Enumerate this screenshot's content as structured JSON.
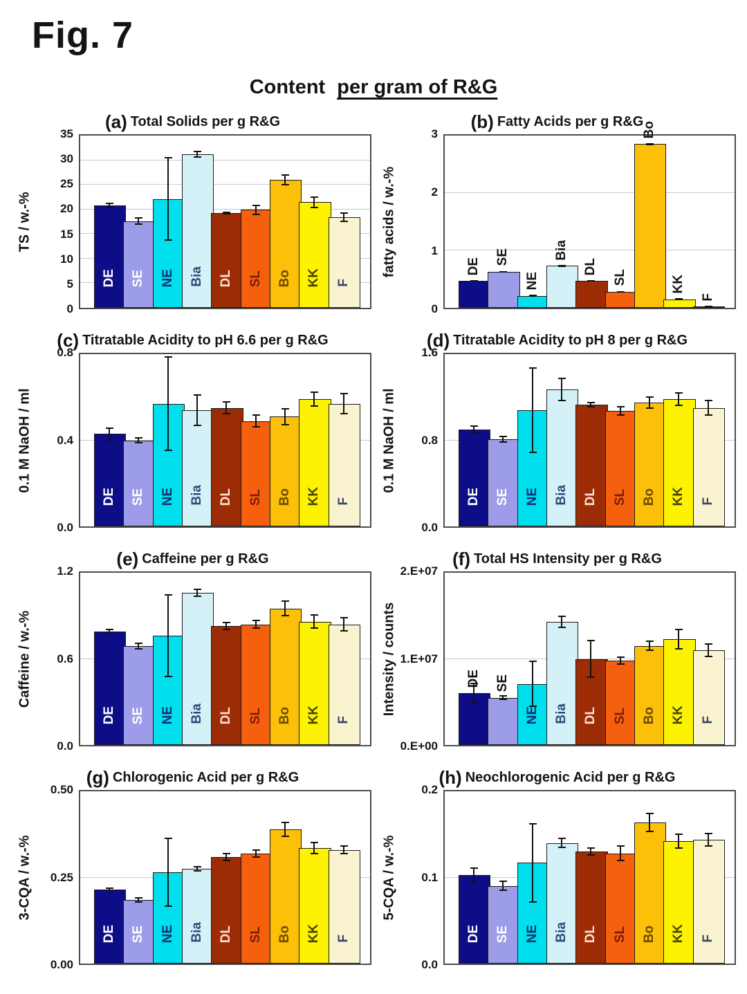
{
  "figure_label": "Fig. 7",
  "main_title": {
    "prefix": "Content",
    "underlined": "per gram of R&G"
  },
  "categories": [
    "DE",
    "SE",
    "NE",
    "Bia",
    "DL",
    "SL",
    "Bo",
    "KK",
    "F"
  ],
  "bar_colors": {
    "DE": "#0d0d87",
    "SE": "#9c9ce8",
    "NE": "#00dfee",
    "Bia": "#d4f1f8",
    "DL": "#9b2c06",
    "SL": "#f4600e",
    "Bo": "#fcc008",
    "KK": "#fdf202",
    "F": "#f9f3d0"
  },
  "bar_label_colors": {
    "DE": "#ffffff",
    "SE": "#ffffff",
    "NE": "#0e3070",
    "Bia": "#2a4c79",
    "DL": "#ffe0d2",
    "SL": "#801a00",
    "Bo": "#6b4a00",
    "KK": "#454500",
    "F": "#3a4568"
  },
  "outside_label_color": "#141414",
  "chart_data": [
    {
      "type": "bar",
      "panel": "(a)",
      "title": "Total Solids per g R&G",
      "ylabel": "TS / w.-%",
      "ylim": [
        0,
        35
      ],
      "tick_values": [
        0,
        5,
        10,
        15,
        20,
        25,
        30,
        35
      ],
      "tick_labels": [
        "0",
        "5",
        "10",
        "15",
        "20",
        "25",
        "30",
        "35"
      ],
      "categories": [
        "DE",
        "SE",
        "NE",
        "Bia",
        "DL",
        "SL",
        "Bo",
        "KK",
        "F"
      ],
      "values": [
        20.8,
        17.6,
        22.1,
        31.2,
        19.3,
        19.9,
        26.0,
        21.5,
        18.4
      ],
      "errors": [
        0.5,
        0.8,
        8.5,
        0.7,
        0.3,
        1.0,
        1.1,
        1.2,
        1.0
      ],
      "labels_outside": []
    },
    {
      "type": "bar",
      "panel": "(b)",
      "title": "Fatty Acids per g R&G",
      "ylabel": "fatty acids / w.-%",
      "ylim": [
        0,
        3
      ],
      "tick_values": [
        0,
        1,
        2,
        3
      ],
      "tick_labels": [
        "0",
        "1",
        "2",
        "3"
      ],
      "categories": [
        "DE",
        "SE",
        "NE",
        "Bia",
        "DL",
        "SL",
        "Bo",
        "KK",
        "F"
      ],
      "values": [
        0.47,
        0.63,
        0.21,
        0.73,
        0.47,
        0.28,
        2.85,
        0.15,
        0.02
      ],
      "errors": [
        0.01,
        0.01,
        0.01,
        0.02,
        0.01,
        0.01,
        0.02,
        0.01,
        0.005
      ],
      "labels_outside": "all"
    },
    {
      "type": "bar",
      "panel": "(c)",
      "title": "Titratable Acidity to pH 6.6 per g R&G",
      "ylabel": "0.1 M NaOH / ml",
      "ylim": [
        0,
        0.8
      ],
      "tick_values": [
        0,
        0.4,
        0.8
      ],
      "tick_labels": [
        "0.0",
        "0.4",
        "0.8"
      ],
      "categories": [
        "DE",
        "SE",
        "NE",
        "Bia",
        "DL",
        "SL",
        "Bo",
        "KK",
        "F"
      ],
      "values": [
        0.43,
        0.4,
        0.57,
        0.54,
        0.55,
        0.49,
        0.51,
        0.59,
        0.57
      ],
      "errors": [
        0.03,
        0.015,
        0.22,
        0.075,
        0.03,
        0.03,
        0.04,
        0.035,
        0.05
      ],
      "labels_outside": []
    },
    {
      "type": "bar",
      "panel": "(d)",
      "title": "Titratable Acidity to pH 8 per g R&G",
      "ylabel": "0.1 M NaOH / ml",
      "ylim": [
        0,
        1.6
      ],
      "tick_values": [
        0,
        0.8,
        1.6
      ],
      "tick_labels": [
        "0.0",
        "0.8",
        "1.6"
      ],
      "categories": [
        "DE",
        "SE",
        "NE",
        "Bia",
        "DL",
        "SL",
        "Bo",
        "KK",
        "F"
      ],
      "values": [
        0.9,
        0.81,
        1.08,
        1.27,
        1.13,
        1.07,
        1.15,
        1.18,
        1.1
      ],
      "errors": [
        0.04,
        0.035,
        0.4,
        0.11,
        0.025,
        0.045,
        0.06,
        0.065,
        0.075
      ],
      "labels_outside": []
    },
    {
      "type": "bar",
      "panel": "(e)",
      "title": "Caffeine per g R&G",
      "ylabel": "Caffeine / w.-%",
      "ylim": [
        0,
        1.2
      ],
      "tick_values": [
        0,
        0.6,
        1.2
      ],
      "tick_labels": [
        "0.0",
        "0.6",
        "1.2"
      ],
      "categories": [
        "DE",
        "SE",
        "NE",
        "Bia",
        "DL",
        "SL",
        "Bo",
        "KK",
        "F"
      ],
      "values": [
        0.79,
        0.69,
        0.76,
        1.06,
        0.83,
        0.84,
        0.95,
        0.86,
        0.84
      ],
      "errors": [
        0.02,
        0.025,
        0.29,
        0.03,
        0.03,
        0.03,
        0.055,
        0.05,
        0.05
      ],
      "labels_outside": []
    },
    {
      "type": "bar",
      "panel": "(f)",
      "title": "Total HS Intensity per g R&G",
      "ylabel": "Intensity / counts",
      "ylim": [
        0,
        20000000
      ],
      "tick_values": [
        0,
        10000000,
        20000000
      ],
      "tick_labels": [
        "0.E+00",
        "1.E+07",
        "2.E+07"
      ],
      "categories": [
        "DE",
        "SE",
        "NE",
        "Bia",
        "DL",
        "SL",
        "Bo",
        "KK",
        "F"
      ],
      "values": [
        6000000,
        5500000,
        7100000,
        14300000,
        10000000,
        9800000,
        11500000,
        12300000,
        11000000
      ],
      "errors": [
        1200000,
        300000,
        2700000,
        700000,
        2200000,
        500000,
        600000,
        1200000,
        800000
      ],
      "labels_outside": [
        "DE",
        "SE"
      ]
    },
    {
      "type": "bar",
      "panel": "(g)",
      "title": "Chlorogenic Acid per g R&G",
      "ylabel": "3-CQA / w.-%",
      "ylim": [
        0,
        0.5
      ],
      "tick_values": [
        0,
        0.25,
        0.5
      ],
      "tick_labels": [
        "0.00",
        "0.25",
        "0.50"
      ],
      "categories": [
        "DE",
        "SE",
        "NE",
        "Bia",
        "DL",
        "SL",
        "Bo",
        "KK",
        "F"
      ],
      "values": [
        0.215,
        0.185,
        0.265,
        0.275,
        0.31,
        0.32,
        0.39,
        0.335,
        0.33
      ],
      "errors": [
        0.005,
        0.008,
        0.1,
        0.008,
        0.012,
        0.012,
        0.022,
        0.018,
        0.013
      ],
      "labels_outside": []
    },
    {
      "type": "bar",
      "panel": "(h)",
      "title": "Neochlorogenic Acid per g R&G",
      "ylabel": "5-CQA / w.-%",
      "ylim": [
        0,
        0.2
      ],
      "tick_values": [
        0,
        0.1,
        0.2
      ],
      "tick_labels": [
        "0.0",
        "0.1",
        "0.2"
      ],
      "categories": [
        "DE",
        "SE",
        "NE",
        "Bia",
        "DL",
        "SL",
        "Bo",
        "KK",
        "F"
      ],
      "values": [
        0.103,
        0.09,
        0.117,
        0.14,
        0.13,
        0.128,
        0.164,
        0.142,
        0.144
      ],
      "errors": [
        0.009,
        0.006,
        0.046,
        0.006,
        0.005,
        0.009,
        0.011,
        0.009,
        0.008
      ],
      "labels_outside": []
    }
  ]
}
